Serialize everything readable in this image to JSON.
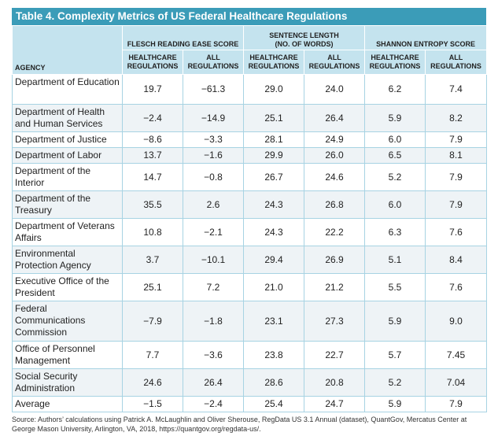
{
  "title": "Table 4. Complexity Metrics of US Federal Healthcare Regulations",
  "header": {
    "agency": "AGENCY",
    "groups": [
      "FLESCH READING EASE SCORE",
      "SENTENCE LENGTH\n(NO. OF WORDS)",
      "SHANNON ENTROPY SCORE"
    ],
    "subheaders": [
      "HEALTHCARE\nREGULATIONS",
      "ALL\nREGULATIONS",
      "HEALTHCARE\nREGULATIONS",
      "ALL\nREGULATIONS",
      "HEALTHCARE\nREGULATIONS",
      "ALL\nREGULATIONS"
    ]
  },
  "table": {
    "rows": [
      [
        "Department of Education",
        "19.7",
        "−61.3",
        "29.0",
        "24.0",
        "6.2",
        "7.4"
      ],
      [
        "Department of Health and Human Services",
        "−2.4",
        "−14.9",
        "25.1",
        "26.4",
        "5.9",
        "8.2"
      ],
      [
        "Department of Justice",
        "−8.6",
        "−3.3",
        "28.1",
        "24.9",
        "6.0",
        "7.9"
      ],
      [
        "Department of Labor",
        "13.7",
        "−1.6",
        "29.9",
        "26.0",
        "6.5",
        "8.1"
      ],
      [
        "Department of the Interior",
        "14.7",
        "−0.8",
        "26.7",
        "24.6",
        "5.2",
        "7.9"
      ],
      [
        "Department of the Treasury",
        "35.5",
        "2.6",
        "24.3",
        "26.8",
        "6.0",
        "7.9"
      ],
      [
        "Department of Veterans Affairs",
        "10.8",
        "−2.1",
        "24.3",
        "22.2",
        "6.3",
        "7.6"
      ],
      [
        "Environmental Protection Agency",
        "3.7",
        "−10.1",
        "29.4",
        "26.9",
        "5.1",
        "8.4"
      ],
      [
        "Executive Office of the President",
        "25.1",
        "7.2",
        "21.0",
        "21.2",
        "5.5",
        "7.6"
      ],
      [
        "Federal Communications Commission",
        "−7.9",
        "−1.8",
        "23.1",
        "27.3",
        "5.9",
        "9.0"
      ],
      [
        "Office of Personnel Management",
        "7.7",
        "−3.6",
        "23.8",
        "22.7",
        "5.7",
        "7.45"
      ],
      [
        "Social Security Administration",
        "24.6",
        "26.4",
        "28.6",
        "20.8",
        "5.2",
        "7.04"
      ],
      [
        "Average",
        "−1.5",
        "−2.4",
        "25.4",
        "24.7",
        "5.9",
        "7.9"
      ]
    ]
  },
  "source": "Source: Authors’ calculations using Patrick A. McLaughlin and Oliver Sherouse, RegData US 3.1 Annual (dataset), QuantGov, Mercatus Center at George Mason University, Arlington, VA, 2018, https://quantgov.org/regdata-us/."
}
